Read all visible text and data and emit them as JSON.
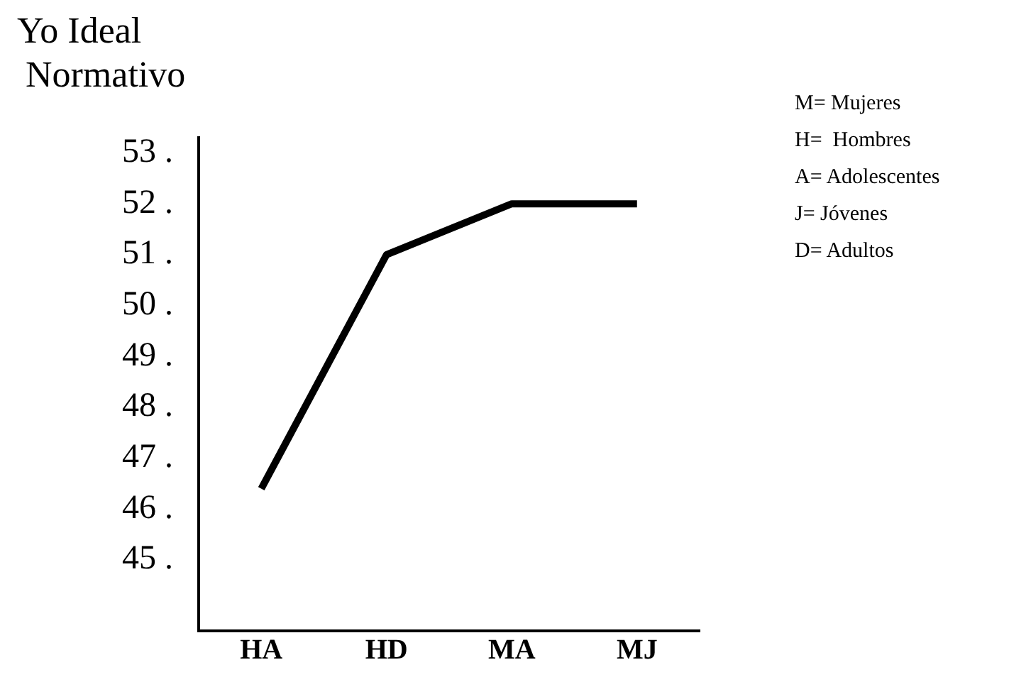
{
  "chart_data": {
    "type": "line",
    "ylabel": "Yo Ideal Normativo",
    "categories": [
      "HA",
      "HD",
      "MA",
      "MJ"
    ],
    "series": [
      {
        "color": "#000000",
        "values": [
          46.4,
          51,
          52,
          52
        ]
      }
    ],
    "ylim": [
      43.6,
      53.3
    ],
    "yticks": [
      {
        "value": 45,
        "label": "45 ."
      },
      {
        "value": 46,
        "label": "46 ."
      },
      {
        "value": 47,
        "label": "47 ."
      },
      {
        "value": 48,
        "label": "48 ."
      },
      {
        "value": 49,
        "label": "49 ."
      },
      {
        "value": 50,
        "label": "50 ."
      },
      {
        "value": 51,
        "label": "51 ."
      },
      {
        "value": 52,
        "label": "52 ."
      },
      {
        "value": 53,
        "label": "53 ."
      }
    ],
    "grid": false,
    "legend": false,
    "marker": "none",
    "line_style": "solid",
    "annotations": [
      "M= Mujeres",
      "H=  Hombres",
      "A= Adolescentes",
      "J= Jóvenes",
      "D= Adultos"
    ]
  }
}
